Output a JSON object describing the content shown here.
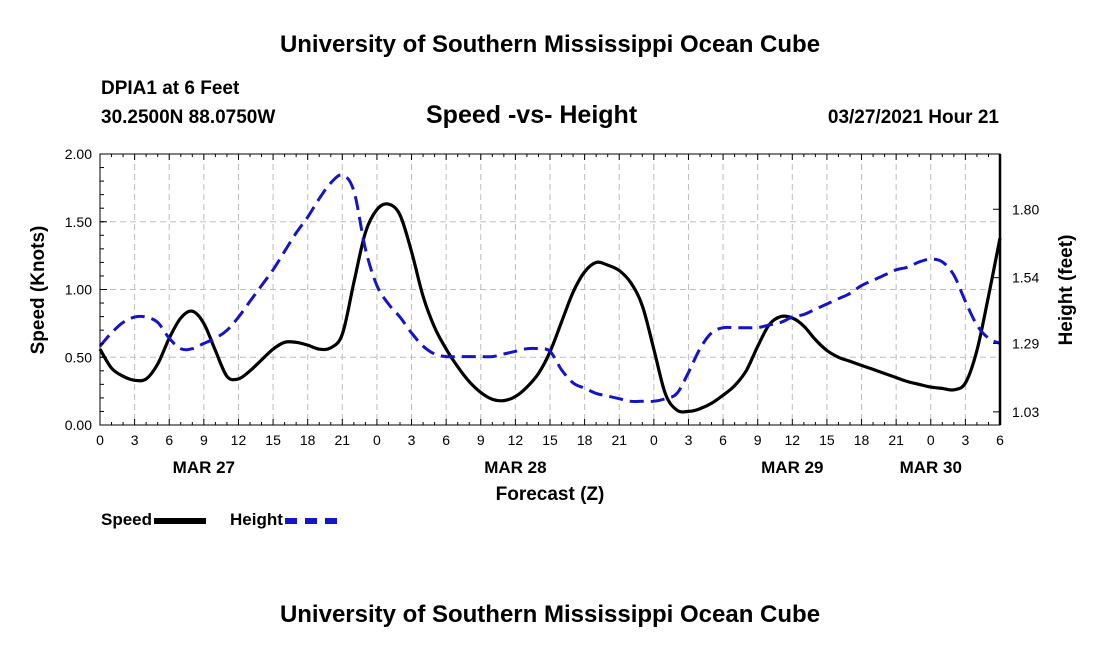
{
  "header": {
    "title": "University of Southern Mississippi Ocean Cube",
    "station": "DPIA1 at 6 Feet",
    "coords": "30.2500N  88.0750W",
    "chart_title": "Speed -vs- Height",
    "timestamp": "03/27/2021 Hour 21"
  },
  "footer": {
    "title": "University of Southern Mississippi Ocean Cube"
  },
  "colors": {
    "speed": "#000000",
    "height": "#1414c8",
    "grid": "#bdbdbd"
  },
  "legend": [
    {
      "label": "Speed",
      "color": "#000000",
      "dash": "solid"
    },
    {
      "label": "Height",
      "color": "#1414c8",
      "dash": "dashed"
    }
  ],
  "chart_data": {
    "type": "line",
    "title": "Speed -vs- Height",
    "xlabel": "Forecast (Z)",
    "ylabel_left": "Speed (Knots)",
    "ylabel_right": "Height (feet)",
    "x_unit": "hours since 03/27/2021 00Z",
    "xlim": [
      0,
      78
    ],
    "ylim_left": [
      0,
      2.0
    ],
    "ylim_right": [
      0.98,
      2.01
    ],
    "yticks_left": [
      "0.00",
      "0.50",
      "1.00",
      "1.50",
      "2.00"
    ],
    "yticks_right": [
      "1.03",
      "1.29",
      "1.54",
      "1.80"
    ],
    "xticks": [
      "0",
      "3",
      "6",
      "9",
      "12",
      "15",
      "18",
      "21",
      "0",
      "3",
      "6",
      "9",
      "12",
      "15",
      "18",
      "21",
      "0",
      "3",
      "6",
      "9",
      "12",
      "15",
      "18",
      "21",
      "0",
      "3",
      "6"
    ],
    "date_labels": [
      {
        "label": "MAR 27",
        "hour": 9
      },
      {
        "label": "MAR 28",
        "hour": 36
      },
      {
        "label": "MAR 29",
        "hour": 60
      },
      {
        "label": "MAR 30",
        "hour": 72
      }
    ],
    "grid": true,
    "series": [
      {
        "name": "Speed",
        "axis": "left",
        "x": [
          0,
          1,
          2,
          3,
          4,
          5,
          6,
          7,
          8,
          9,
          10,
          11,
          12,
          13,
          14,
          15,
          16,
          17,
          18,
          19,
          20,
          21,
          22,
          23,
          24,
          25,
          26,
          27,
          28,
          29,
          30,
          31,
          32,
          33,
          34,
          35,
          36,
          37,
          38,
          39,
          40,
          41,
          42,
          43,
          44,
          45,
          46,
          47,
          48,
          49,
          50,
          51,
          52,
          53,
          54,
          55,
          56,
          57,
          58,
          59,
          60,
          61,
          62,
          63,
          64,
          65,
          66,
          67,
          68,
          69,
          70,
          71,
          72,
          73,
          74,
          75,
          76,
          77,
          78
        ],
        "values": [
          0.56,
          0.42,
          0.36,
          0.33,
          0.34,
          0.45,
          0.64,
          0.79,
          0.84,
          0.75,
          0.55,
          0.36,
          0.34,
          0.4,
          0.48,
          0.56,
          0.61,
          0.61,
          0.59,
          0.56,
          0.57,
          0.67,
          1.05,
          1.42,
          1.59,
          1.63,
          1.55,
          1.28,
          0.95,
          0.72,
          0.56,
          0.43,
          0.32,
          0.24,
          0.19,
          0.18,
          0.21,
          0.28,
          0.38,
          0.54,
          0.76,
          0.98,
          1.13,
          1.2,
          1.18,
          1.14,
          1.05,
          0.88,
          0.56,
          0.23,
          0.11,
          0.1,
          0.12,
          0.16,
          0.22,
          0.29,
          0.4,
          0.58,
          0.74,
          0.8,
          0.79,
          0.73,
          0.63,
          0.55,
          0.5,
          0.47,
          0.44,
          0.41,
          0.38,
          0.35,
          0.32,
          0.3,
          0.28,
          0.27,
          0.26,
          0.31,
          0.55,
          0.95,
          1.38
        ]
      },
      {
        "name": "Height",
        "axis": "right",
        "x": [
          0,
          1,
          2,
          3,
          4,
          5,
          6,
          7,
          8,
          9,
          10,
          11,
          12,
          13,
          14,
          15,
          16,
          17,
          18,
          19,
          20,
          21,
          22,
          23,
          24,
          25,
          26,
          27,
          28,
          29,
          30,
          31,
          32,
          33,
          34,
          35,
          36,
          37,
          38,
          39,
          40,
          41,
          42,
          43,
          44,
          45,
          46,
          47,
          48,
          49,
          50,
          51,
          52,
          53,
          54,
          55,
          56,
          57,
          58,
          59,
          60,
          61,
          62,
          63,
          64,
          65,
          66,
          67,
          68,
          69,
          70,
          71,
          72,
          73,
          74,
          75,
          76,
          77,
          78
        ],
        "values": [
          1.28,
          1.33,
          1.37,
          1.39,
          1.39,
          1.37,
          1.31,
          1.27,
          1.27,
          1.29,
          1.31,
          1.34,
          1.39,
          1.45,
          1.51,
          1.57,
          1.64,
          1.71,
          1.77,
          1.84,
          1.9,
          1.93,
          1.87,
          1.65,
          1.51,
          1.44,
          1.39,
          1.33,
          1.28,
          1.25,
          1.24,
          1.24,
          1.24,
          1.24,
          1.24,
          1.25,
          1.26,
          1.27,
          1.27,
          1.26,
          1.19,
          1.14,
          1.12,
          1.1,
          1.09,
          1.08,
          1.07,
          1.07,
          1.07,
          1.08,
          1.1,
          1.18,
          1.27,
          1.33,
          1.35,
          1.35,
          1.35,
          1.35,
          1.36,
          1.37,
          1.39,
          1.4,
          1.42,
          1.44,
          1.46,
          1.48,
          1.51,
          1.53,
          1.55,
          1.57,
          1.58,
          1.6,
          1.61,
          1.6,
          1.55,
          1.45,
          1.36,
          1.31,
          1.29
        ]
      }
    ]
  }
}
